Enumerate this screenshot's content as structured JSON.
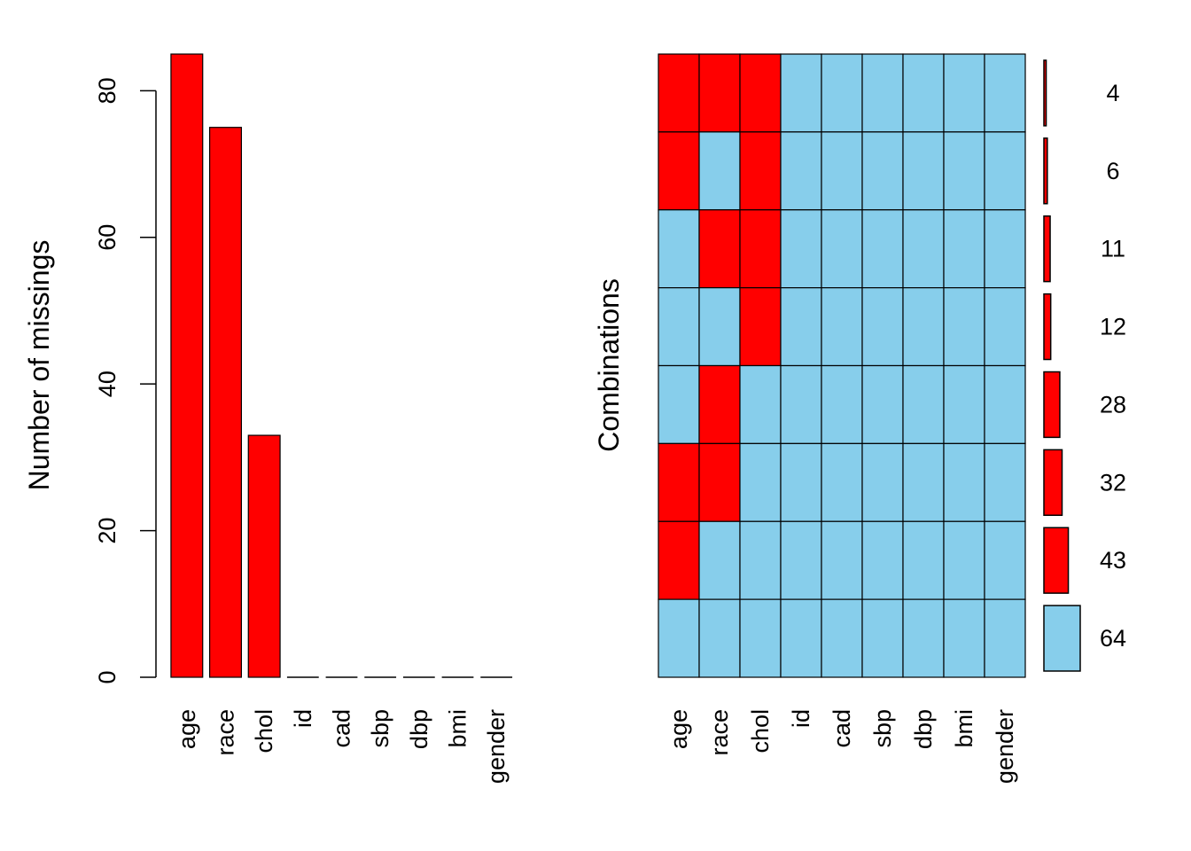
{
  "colors": {
    "missing": "#ff0000",
    "observed": "#87ceeb",
    "border": "#000000"
  },
  "chart_data": [
    {
      "type": "bar",
      "xlabel": "",
      "ylabel": "Number of missings",
      "ylim": [
        0,
        85
      ],
      "yticks": [
        0,
        20,
        40,
        60,
        80
      ],
      "categories": [
        "age",
        "race",
        "chol",
        "id",
        "cad",
        "sbp",
        "dbp",
        "bmi",
        "gender"
      ],
      "values": [
        85,
        75,
        33,
        0,
        0,
        0,
        0,
        0,
        0
      ],
      "grid": false
    },
    {
      "type": "heatmap",
      "ylabel": "Combinations",
      "variables": [
        "age",
        "race",
        "chol",
        "id",
        "cad",
        "sbp",
        "dbp",
        "bmi",
        "gender"
      ],
      "patterns": [
        [
          1,
          1,
          1,
          0,
          0,
          0,
          0,
          0,
          0
        ],
        [
          1,
          0,
          1,
          0,
          0,
          0,
          0,
          0,
          0
        ],
        [
          0,
          1,
          1,
          0,
          0,
          0,
          0,
          0,
          0
        ],
        [
          0,
          0,
          1,
          0,
          0,
          0,
          0,
          0,
          0
        ],
        [
          0,
          1,
          0,
          0,
          0,
          0,
          0,
          0,
          0
        ],
        [
          1,
          1,
          0,
          0,
          0,
          0,
          0,
          0,
          0
        ],
        [
          1,
          0,
          0,
          0,
          0,
          0,
          0,
          0,
          0
        ],
        [
          0,
          0,
          0,
          0,
          0,
          0,
          0,
          0,
          0
        ]
      ],
      "counts": [
        4,
        6,
        11,
        12,
        28,
        32,
        43,
        64
      ]
    }
  ]
}
